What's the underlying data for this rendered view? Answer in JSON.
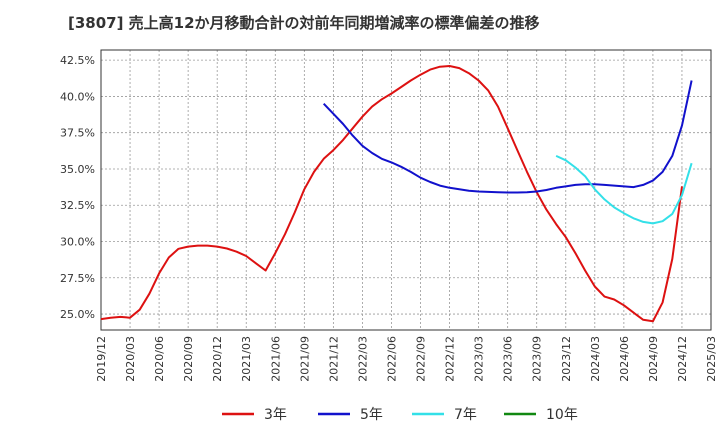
{
  "title": "[3807]  売上高12か月移動合計の対前年同期増減率の標準偏差の推移",
  "chart_data": {
    "type": "line",
    "title": "[3807]  売上高12か月移動合計の対前年同期増減率の標準偏差の推移",
    "xlabel": "",
    "ylabel": "",
    "x_tick_labels": [
      "2019/12",
      "2020/03",
      "2020/06",
      "2020/09",
      "2020/12",
      "2021/03",
      "2021/06",
      "2021/09",
      "2021/12",
      "2022/03",
      "2022/06",
      "2022/09",
      "2022/12",
      "2023/03",
      "2023/06",
      "2023/09",
      "2023/12",
      "2024/03",
      "2024/06",
      "2024/09",
      "2024/12",
      "2025/03"
    ],
    "y_tick_labels": [
      "25.0%",
      "27.5%",
      "30.0%",
      "32.5%",
      "35.0%",
      "37.5%",
      "40.0%",
      "42.5%"
    ],
    "y_ticks": [
      25.0,
      27.5,
      30.0,
      32.5,
      35.0,
      37.5,
      40.0,
      42.5
    ],
    "ylim": [
      23.9,
      43.2
    ],
    "grid": true,
    "legend_position": "bottom",
    "series": [
      {
        "name": "3年",
        "color": "#dd1111",
        "points": [
          [
            "2019/12",
            24.65
          ],
          [
            "2020/01",
            24.75
          ],
          [
            "2020/02",
            24.8
          ],
          [
            "2020/03",
            24.75
          ],
          [
            "2020/04",
            25.3
          ],
          [
            "2020/05",
            26.4
          ],
          [
            "2020/06",
            27.8
          ],
          [
            "2020/07",
            28.9
          ],
          [
            "2020/08",
            29.5
          ],
          [
            "2020/09",
            29.65
          ],
          [
            "2020/10",
            29.72
          ],
          [
            "2020/11",
            29.72
          ],
          [
            "2020/12",
            29.65
          ],
          [
            "2021/01",
            29.52
          ],
          [
            "2021/02",
            29.3
          ],
          [
            "2021/03",
            29.0
          ],
          [
            "2021/04",
            28.5
          ],
          [
            "2021/05",
            28.0
          ],
          [
            "2021/06",
            29.2
          ],
          [
            "2021/07",
            30.5
          ],
          [
            "2021/08",
            32.0
          ],
          [
            "2021/09",
            33.6
          ],
          [
            "2021/10",
            34.8
          ],
          [
            "2021/11",
            35.7
          ],
          [
            "2021/12",
            36.3
          ],
          [
            "2022/01",
            37.0
          ],
          [
            "2022/02",
            37.8
          ],
          [
            "2022/03",
            38.6
          ],
          [
            "2022/04",
            39.3
          ],
          [
            "2022/05",
            39.8
          ],
          [
            "2022/06",
            40.2
          ],
          [
            "2022/07",
            40.65
          ],
          [
            "2022/08",
            41.1
          ],
          [
            "2022/09",
            41.5
          ],
          [
            "2022/10",
            41.85
          ],
          [
            "2022/11",
            42.05
          ],
          [
            "2022/12",
            42.1
          ],
          [
            "2023/01",
            41.95
          ],
          [
            "2023/02",
            41.6
          ],
          [
            "2023/03",
            41.1
          ],
          [
            "2023/04",
            40.4
          ],
          [
            "2023/05",
            39.3
          ],
          [
            "2023/06",
            37.8
          ],
          [
            "2023/07",
            36.3
          ],
          [
            "2023/08",
            34.8
          ],
          [
            "2023/09",
            33.4
          ],
          [
            "2023/10",
            32.2
          ],
          [
            "2023/11",
            31.2
          ],
          [
            "2023/12",
            30.3
          ],
          [
            "2024/01",
            29.2
          ],
          [
            "2024/02",
            28.0
          ],
          [
            "2024/03",
            26.9
          ],
          [
            "2024/04",
            26.2
          ],
          [
            "2024/05",
            26.0
          ],
          [
            "2024/06",
            25.6
          ],
          [
            "2024/07",
            25.1
          ],
          [
            "2024/08",
            24.6
          ],
          [
            "2024/09",
            24.5
          ],
          [
            "2024/10",
            25.8
          ],
          [
            "2024/11",
            28.8
          ],
          [
            "2024/12",
            33.8
          ]
        ]
      },
      {
        "name": "5年",
        "color": "#1111cc",
        "points": [
          [
            "2021/11",
            39.5
          ],
          [
            "2021/12",
            38.8
          ],
          [
            "2022/01",
            38.1
          ],
          [
            "2022/02",
            37.3
          ],
          [
            "2022/03",
            36.6
          ],
          [
            "2022/04",
            36.1
          ],
          [
            "2022/05",
            35.7
          ],
          [
            "2022/06",
            35.45
          ],
          [
            "2022/07",
            35.15
          ],
          [
            "2022/08",
            34.8
          ],
          [
            "2022/09",
            34.4
          ],
          [
            "2022/10",
            34.1
          ],
          [
            "2022/11",
            33.85
          ],
          [
            "2022/12",
            33.7
          ],
          [
            "2023/01",
            33.6
          ],
          [
            "2023/02",
            33.5
          ],
          [
            "2023/03",
            33.45
          ],
          [
            "2023/04",
            33.42
          ],
          [
            "2023/05",
            33.4
          ],
          [
            "2023/06",
            33.38
          ],
          [
            "2023/07",
            33.38
          ],
          [
            "2023/08",
            33.4
          ],
          [
            "2023/09",
            33.45
          ],
          [
            "2023/10",
            33.55
          ],
          [
            "2023/11",
            33.7
          ],
          [
            "2023/12",
            33.8
          ],
          [
            "2024/01",
            33.9
          ],
          [
            "2024/02",
            33.95
          ],
          [
            "2024/03",
            33.95
          ],
          [
            "2024/04",
            33.9
          ],
          [
            "2024/05",
            33.85
          ],
          [
            "2024/06",
            33.8
          ],
          [
            "2024/07",
            33.75
          ],
          [
            "2024/08",
            33.9
          ],
          [
            "2024/09",
            34.2
          ],
          [
            "2024/10",
            34.8
          ],
          [
            "2024/11",
            35.9
          ],
          [
            "2024/12",
            38.0
          ],
          [
            "2025/01",
            41.1
          ]
        ]
      },
      {
        "name": "7年",
        "color": "#33e0e8",
        "points": [
          [
            "2023/11",
            35.9
          ],
          [
            "2023/12",
            35.6
          ],
          [
            "2024/01",
            35.1
          ],
          [
            "2024/02",
            34.5
          ],
          [
            "2024/03",
            33.6
          ],
          [
            "2024/04",
            32.9
          ],
          [
            "2024/05",
            32.35
          ],
          [
            "2024/06",
            31.95
          ],
          [
            "2024/07",
            31.6
          ],
          [
            "2024/08",
            31.35
          ],
          [
            "2024/09",
            31.25
          ],
          [
            "2024/10",
            31.4
          ],
          [
            "2024/11",
            31.9
          ],
          [
            "2024/12",
            33.2
          ],
          [
            "2025/01",
            35.4
          ]
        ]
      },
      {
        "name": "10年",
        "color": "#118811",
        "points": []
      }
    ]
  }
}
